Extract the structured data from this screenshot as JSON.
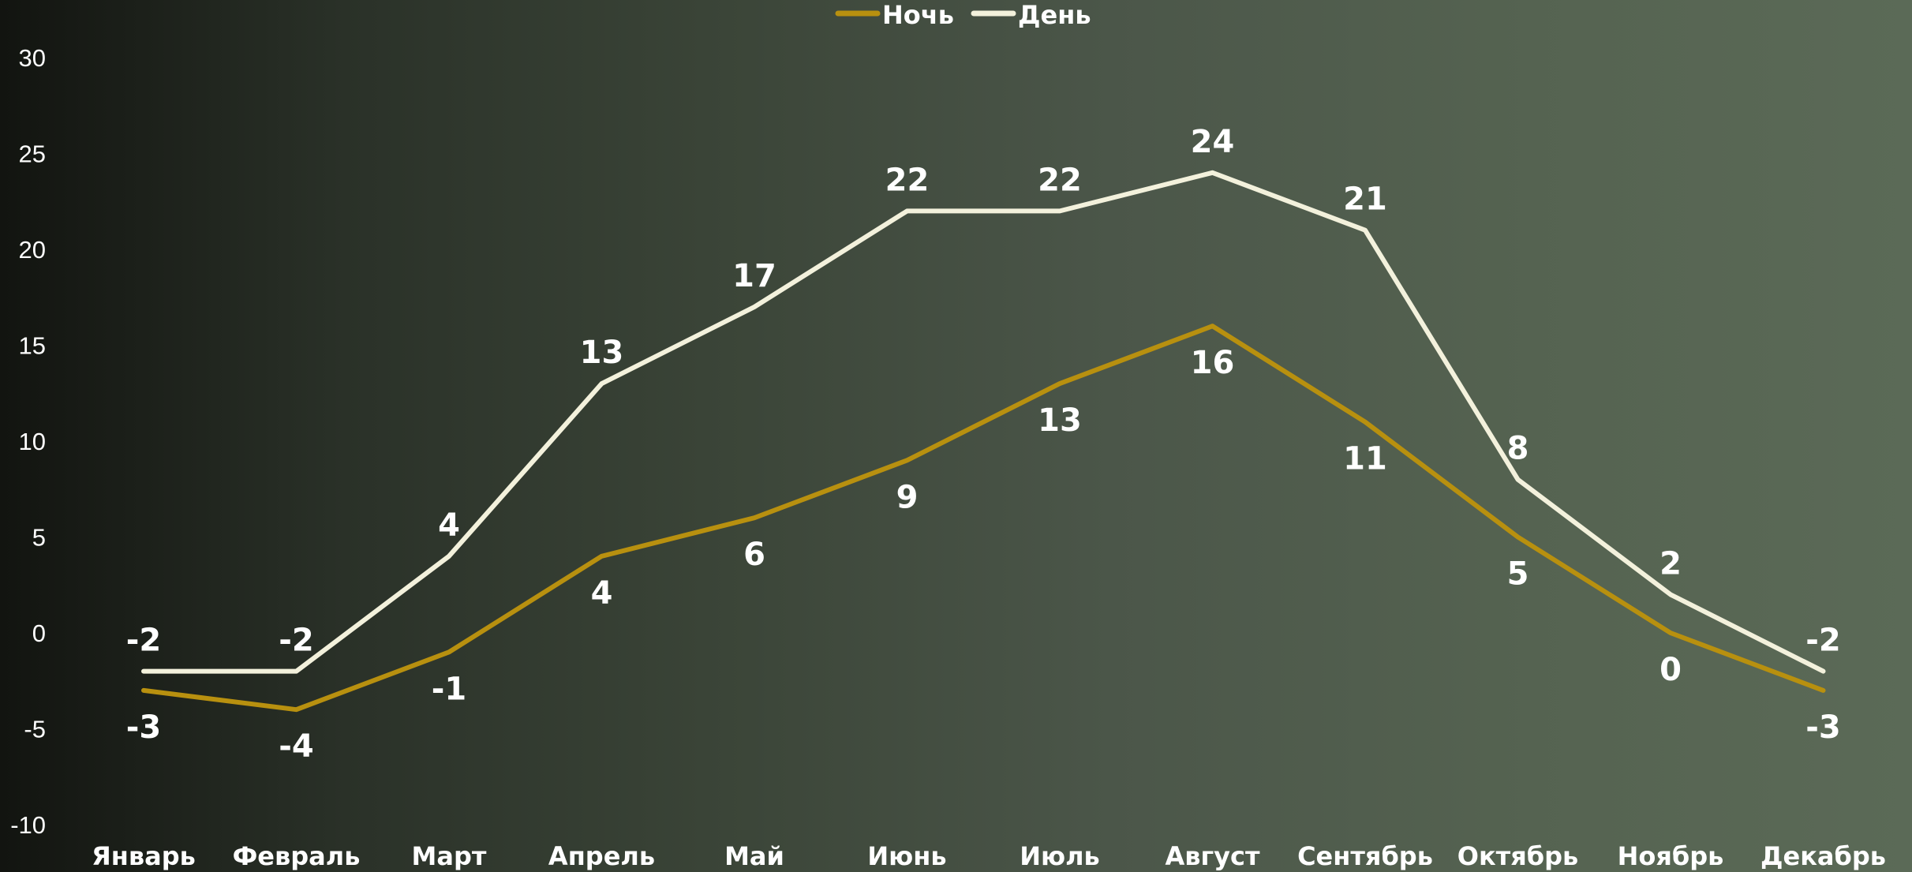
{
  "chart_data": {
    "type": "line",
    "categories": [
      "Январь",
      "Февраль",
      "Март",
      "Апрель",
      "Май",
      "Июнь",
      "Июль",
      "Август",
      "Сентябрь",
      "Октябрь",
      "Ноябрь",
      "Декабрь"
    ],
    "series": [
      {
        "name": "Ночь",
        "color": "#b8900f",
        "values": [
          -3,
          -4,
          -1,
          4,
          6,
          9,
          13,
          16,
          11,
          5,
          0,
          -3
        ],
        "labels": [
          "-3",
          "-4",
          "-1",
          "4",
          "6",
          "9",
          "13",
          "16",
          "11",
          "5",
          "0",
          "-3"
        ],
        "label_position": "below"
      },
      {
        "name": "День",
        "color": "#f3f1dc",
        "values": [
          -2,
          -2,
          4,
          13,
          17,
          22,
          22,
          24,
          21,
          8,
          2,
          -2
        ],
        "labels": [
          "-2",
          "-2",
          "4",
          "13",
          "17",
          "22",
          "22",
          "24",
          "21",
          "8",
          "2",
          "-2"
        ],
        "label_position": "above"
      }
    ],
    "yticks": [
      "-10",
      "-5",
      "0",
      "5",
      "10",
      "15",
      "20",
      "25",
      "30"
    ],
    "ylim": [
      -10,
      30
    ],
    "grid": false,
    "legend_position": "top-center"
  }
}
